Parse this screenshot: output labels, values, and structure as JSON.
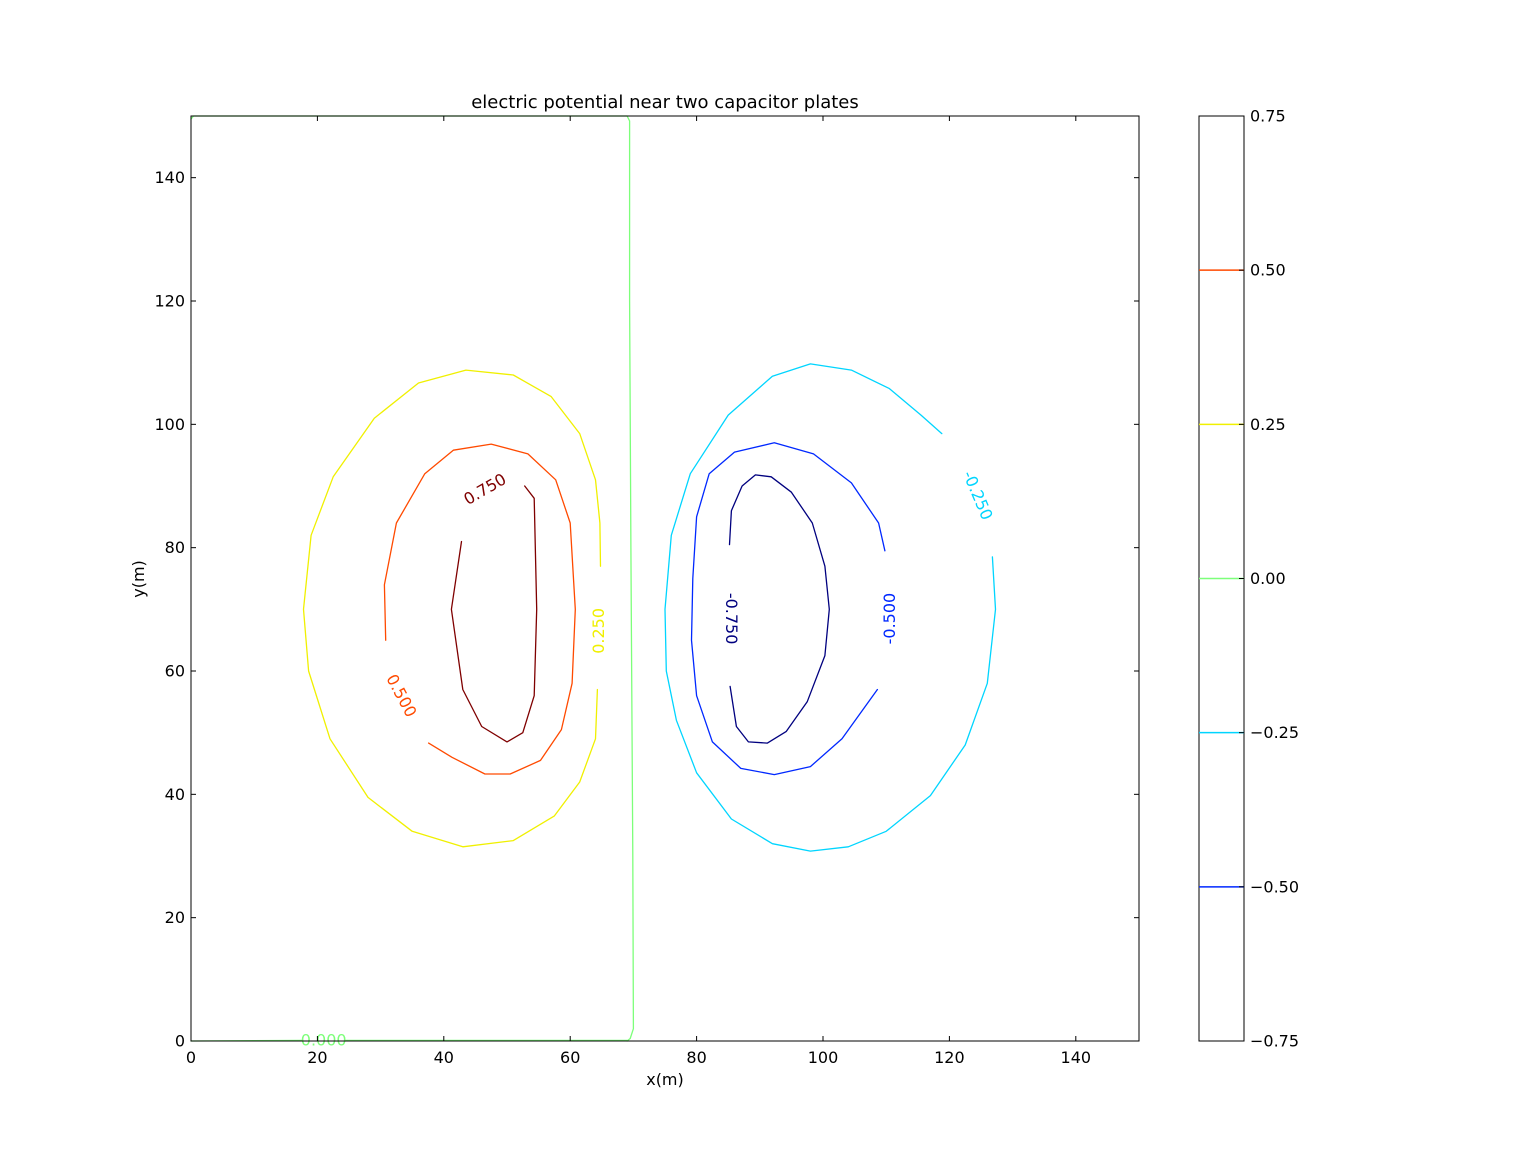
{
  "chart_data": {
    "type": "contour",
    "title": "electric potential near two capacitor plates",
    "xlabel": "x(m)",
    "ylabel": "y(m)",
    "xlim": [
      0,
      150
    ],
    "ylim": [
      0,
      150
    ],
    "xticks": [
      0,
      20,
      40,
      60,
      80,
      100,
      120,
      140
    ],
    "yticks": [
      0,
      20,
      40,
      60,
      80,
      100,
      120,
      140
    ],
    "colormap": "jet",
    "colorbar": {
      "vmin": -0.75,
      "vmax": 0.75,
      "ticks": [
        "0.75",
        "0.50",
        "0.25",
        "0.00",
        "−0.25",
        "−0.50",
        "−0.75"
      ],
      "tick_values": [
        0.75,
        0.5,
        0.25,
        0.0,
        -0.25,
        -0.5,
        -0.75
      ],
      "line_levels": [
        {
          "value": 0.5,
          "color": "#ff4a00"
        },
        {
          "value": 0.25,
          "color": "#f0f000"
        },
        {
          "value": 0.0,
          "color": "#7dff7a"
        },
        {
          "value": -0.25,
          "color": "#00d5ff"
        },
        {
          "value": -0.5,
          "color": "#0028ff"
        }
      ]
    },
    "series": [
      {
        "level": 0.75,
        "color": "#7f0000",
        "contour_label": "0.750",
        "paths": [
          [
            [
              42.8,
              81
            ],
            [
              41.2,
              70
            ],
            [
              43,
              57
            ],
            [
              46,
              51
            ],
            [
              50,
              48.5
            ],
            [
              52.5,
              50
            ],
            [
              54.3,
              56
            ],
            [
              54.7,
              70
            ],
            [
              54.3,
              88
            ],
            [
              52.8,
              90
            ]
          ]
        ]
      },
      {
        "level": 0.5,
        "color": "#ff4a00",
        "contour_label": "0.500",
        "paths": [
          [
            [
              30.8,
              65
            ],
            [
              30.6,
              74
            ],
            [
              32.5,
              84
            ],
            [
              37,
              92
            ],
            [
              41.5,
              95.8
            ],
            [
              47.5,
              96.8
            ],
            [
              53.3,
              95.2
            ],
            [
              57.7,
              91
            ],
            [
              60,
              84
            ],
            [
              60.8,
              70
            ],
            [
              60.3,
              58
            ],
            [
              58.6,
              50.5
            ],
            [
              55.3,
              45.5
            ],
            [
              50.5,
              43.3
            ],
            [
              46.5,
              43.3
            ],
            [
              41.3,
              46
            ],
            [
              37.6,
              48.3
            ]
          ]
        ]
      },
      {
        "level": 0.25,
        "color": "#f0f000",
        "contour_label": "0.250",
        "paths": [
          [
            [
              64.3,
              57
            ],
            [
              64,
              49
            ],
            [
              61.5,
              42
            ],
            [
              57.5,
              36.5
            ],
            [
              51,
              32.5
            ],
            [
              43,
              31.5
            ],
            [
              35,
              34
            ],
            [
              28,
              39.5
            ],
            [
              22,
              49
            ],
            [
              18.6,
              60
            ],
            [
              17.8,
              70
            ],
            [
              19,
              82
            ],
            [
              22.5,
              91.5
            ],
            [
              29,
              101
            ],
            [
              36,
              106.7
            ],
            [
              43.5,
              108.8
            ],
            [
              51,
              108
            ],
            [
              57,
              104.5
            ],
            [
              61.5,
              98.5
            ],
            [
              64,
              91
            ],
            [
              64.7,
              84
            ],
            [
              64.8,
              77
            ]
          ]
        ]
      },
      {
        "level": 0.0,
        "color": "#7dff7a",
        "contour_label": "0.000",
        "paths": [
          [
            [
              0,
              149.5
            ],
            [
              0.4,
              150
            ],
            [
              69,
              150
            ],
            [
              69.4,
              149.2
            ],
            [
              69.4,
              120
            ],
            [
              69.6,
              80
            ],
            [
              69.9,
              30
            ],
            [
              70,
              2
            ],
            [
              69.5,
              0.4
            ],
            [
              69,
              0
            ]
          ],
          [
            [
              0,
              0
            ],
            [
              17.5,
              0.1
            ]
          ],
          [
            [
              24.5,
              0.1
            ],
            [
              69,
              0.1
            ]
          ]
        ]
      },
      {
        "level": -0.25,
        "color": "#00d5ff",
        "contour_label": "-0.250",
        "paths": [
          [
            [
              126.8,
              78.5
            ],
            [
              127.3,
              70
            ],
            [
              126,
              58
            ],
            [
              122.5,
              48
            ],
            [
              117,
              39.8
            ],
            [
              110,
              34
            ],
            [
              104,
              31.5
            ],
            [
              98,
              30.8
            ],
            [
              92,
              32
            ],
            [
              85.5,
              36
            ],
            [
              80,
              43.5
            ],
            [
              76.8,
              52
            ],
            [
              75.2,
              60
            ],
            [
              75,
              70
            ],
            [
              76,
              82
            ],
            [
              79,
              92
            ],
            [
              85,
              101.5
            ],
            [
              92,
              107.8
            ],
            [
              98,
              109.8
            ],
            [
              104.5,
              108.8
            ],
            [
              110.5,
              105.8
            ],
            [
              115.5,
              101.5
            ],
            [
              118.8,
              98.5
            ]
          ]
        ]
      },
      {
        "level": -0.5,
        "color": "#0028ff",
        "contour_label": "-0.500",
        "paths": [
          [
            [
              109.8,
              79.5
            ],
            [
              108.8,
              84
            ],
            [
              104.5,
              90.5
            ],
            [
              98.5,
              95.2
            ],
            [
              92.3,
              97
            ],
            [
              86,
              95.5
            ],
            [
              82,
              92
            ],
            [
              80,
              85
            ],
            [
              79.4,
              75
            ],
            [
              79.2,
              65
            ],
            [
              80,
              56
            ],
            [
              82.5,
              48.5
            ],
            [
              87,
              44.2
            ],
            [
              92.3,
              43.2
            ],
            [
              98,
              44.5
            ],
            [
              103,
              49
            ],
            [
              106.5,
              54
            ],
            [
              108.6,
              57
            ]
          ]
        ]
      },
      {
        "level": -0.75,
        "color": "#00007f",
        "contour_label": "-0.750",
        "paths": [
          [
            [
              85.2,
              80.5
            ],
            [
              85.5,
              86
            ],
            [
              87.2,
              90
            ],
            [
              89.3,
              91.8
            ],
            [
              91.8,
              91.5
            ],
            [
              95,
              89
            ],
            [
              98.3,
              84
            ],
            [
              100.3,
              77
            ],
            [
              101,
              70
            ],
            [
              100.3,
              62.5
            ],
            [
              97.5,
              55
            ],
            [
              94.2,
              50.2
            ],
            [
              91.2,
              48.3
            ],
            [
              88.2,
              48.5
            ],
            [
              86.3,
              51
            ],
            [
              85.3,
              57.5
            ]
          ]
        ]
      }
    ]
  }
}
